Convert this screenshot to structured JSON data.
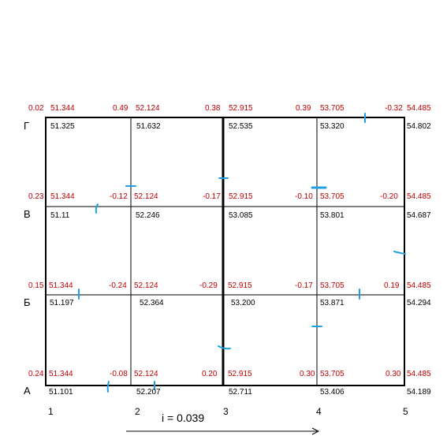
{
  "row_labels": [
    "А",
    "Б",
    "В",
    "Г"
  ],
  "column_labels": [
    "1",
    "2",
    "3",
    "4",
    "5"
  ],
  "slope_label": "i = 0.039",
  "colors": {
    "red_text": "#c00000",
    "black_text": "#000000",
    "marker": "#1fa0e0",
    "grid": "#000000"
  },
  "nodes": {
    "row_G": {
      "red": [
        "0.02",
        "51.344",
        "0.49",
        "52.124",
        "0.38",
        "52.915",
        "0.39",
        "53.705",
        "-0.32",
        "54.485"
      ],
      "black": [
        "51.325",
        "51.632",
        "52.535",
        "53.320",
        "54.802"
      ]
    },
    "row_V": {
      "red": [
        "0.23",
        "51.344",
        "-0.12",
        "52.124",
        "-0.17",
        "52.915",
        "-0.10",
        "53.705",
        "-0.20",
        "54.485"
      ],
      "black": [
        "51.11",
        "52.246",
        "53.085",
        "53.801",
        "54.687"
      ]
    },
    "row_B": {
      "red": [
        "0.15",
        "51.344",
        "-0.24",
        "52.124",
        "-0.29",
        "52.915",
        "-0.17",
        "53.705",
        "0.19",
        "54.485"
      ],
      "black": [
        "51.197",
        "52.364",
        "53.200",
        "53.871",
        "54.294"
      ]
    },
    "row_A": {
      "red": [
        "0.24",
        "51.344",
        "-0.08",
        "52.124",
        "0.20",
        "52.915",
        "0.30",
        "53.705",
        "0.30",
        "54.485"
      ],
      "black": [
        "51.101",
        "52.207",
        "52.711",
        "53.406",
        "54.189"
      ]
    }
  }
}
